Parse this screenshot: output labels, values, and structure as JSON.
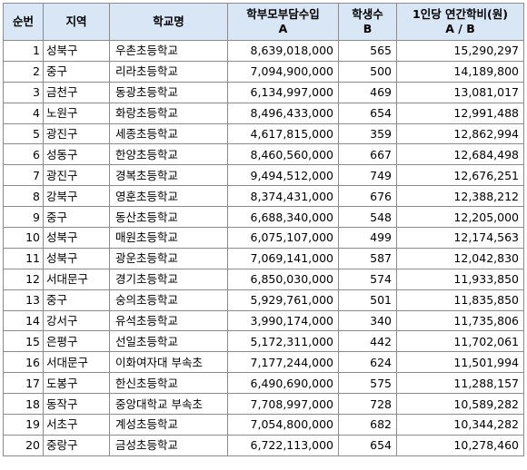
{
  "table": {
    "headers": {
      "rank": "순번",
      "region": "지역",
      "school": "학교명",
      "income_line1": "학부모부담수입",
      "income_line2": "A",
      "students_line1": "학생수",
      "students_line2": "B",
      "per_capita_line1": "1인당 연간학비(원)",
      "per_capita_line2": "A / B"
    },
    "rows": [
      {
        "rank": "1",
        "region": "성북구",
        "school": "우촌초등학교",
        "income": "8,639,018,000",
        "students": "565",
        "per_capita": "15,290,297"
      },
      {
        "rank": "2",
        "region": "중구",
        "school": "리라초등학교",
        "income": "7,094,900,000",
        "students": "500",
        "per_capita": "14,189,800"
      },
      {
        "rank": "3",
        "region": "금천구",
        "school": "동광초등학교",
        "income": "6,134,997,000",
        "students": "469",
        "per_capita": "13,081,017"
      },
      {
        "rank": "4",
        "region": "노원구",
        "school": "화랑초등학교",
        "income": "8,496,433,000",
        "students": "654",
        "per_capita": "12,991,488"
      },
      {
        "rank": "5",
        "region": "광진구",
        "school": "세종초등학교",
        "income": "4,617,815,000",
        "students": "359",
        "per_capita": "12,862,994"
      },
      {
        "rank": "6",
        "region": "성동구",
        "school": "한양초등학교",
        "income": "8,460,560,000",
        "students": "667",
        "per_capita": "12,684,498"
      },
      {
        "rank": "7",
        "region": "광진구",
        "school": "경복초등학교",
        "income": "9,494,512,000",
        "students": "749",
        "per_capita": "12,676,251"
      },
      {
        "rank": "8",
        "region": "강북구",
        "school": "영훈초등학교",
        "income": "8,374,431,000",
        "students": "676",
        "per_capita": "12,388,212"
      },
      {
        "rank": "9",
        "region": "중구",
        "school": "동산초등학교",
        "income": "6,688,340,000",
        "students": "548",
        "per_capita": "12,205,000"
      },
      {
        "rank": "10",
        "region": "성북구",
        "school": "매원초등학교",
        "income": "6,075,107,000",
        "students": "499",
        "per_capita": "12,174,563"
      },
      {
        "rank": "11",
        "region": "성북구",
        "school": "광운초등학교",
        "income": "7,069,141,000",
        "students": "587",
        "per_capita": "12,042,830"
      },
      {
        "rank": "12",
        "region": "서대문구",
        "school": "경기초등학교",
        "income": "6,850,030,000",
        "students": "574",
        "per_capita": "11,933,850"
      },
      {
        "rank": "13",
        "region": "중구",
        "school": "숭의초등학교",
        "income": "5,929,761,000",
        "students": "501",
        "per_capita": "11,835,850"
      },
      {
        "rank": "14",
        "region": "강서구",
        "school": "유석초등학교",
        "income": "3,990,174,000",
        "students": "340",
        "per_capita": "11,735,806"
      },
      {
        "rank": "15",
        "region": "은평구",
        "school": "선일초등학교",
        "income": "5,172,311,000",
        "students": "442",
        "per_capita": "11,702,061"
      },
      {
        "rank": "16",
        "region": "서대문구",
        "school": "이화여자대 부속초",
        "income": "7,177,244,000",
        "students": "624",
        "per_capita": "11,501,994"
      },
      {
        "rank": "17",
        "region": "도봉구",
        "school": "한신초등학교",
        "income": "6,490,690,000",
        "students": "575",
        "per_capita": "11,288,157"
      },
      {
        "rank": "18",
        "region": "동작구",
        "school": "중앙대학교 부속초",
        "income": "7,708,997,000",
        "students": "728",
        "per_capita": "10,589,282"
      },
      {
        "rank": "19",
        "region": "서초구",
        "school": "계성초등학교",
        "income": "7,054,800,000",
        "students": "682",
        "per_capita": "10,344,282"
      },
      {
        "rank": "20",
        "region": "중랑구",
        "school": "금성초등학교",
        "income": "6,722,113,000",
        "students": "654",
        "per_capita": "10,278,460"
      }
    ]
  }
}
